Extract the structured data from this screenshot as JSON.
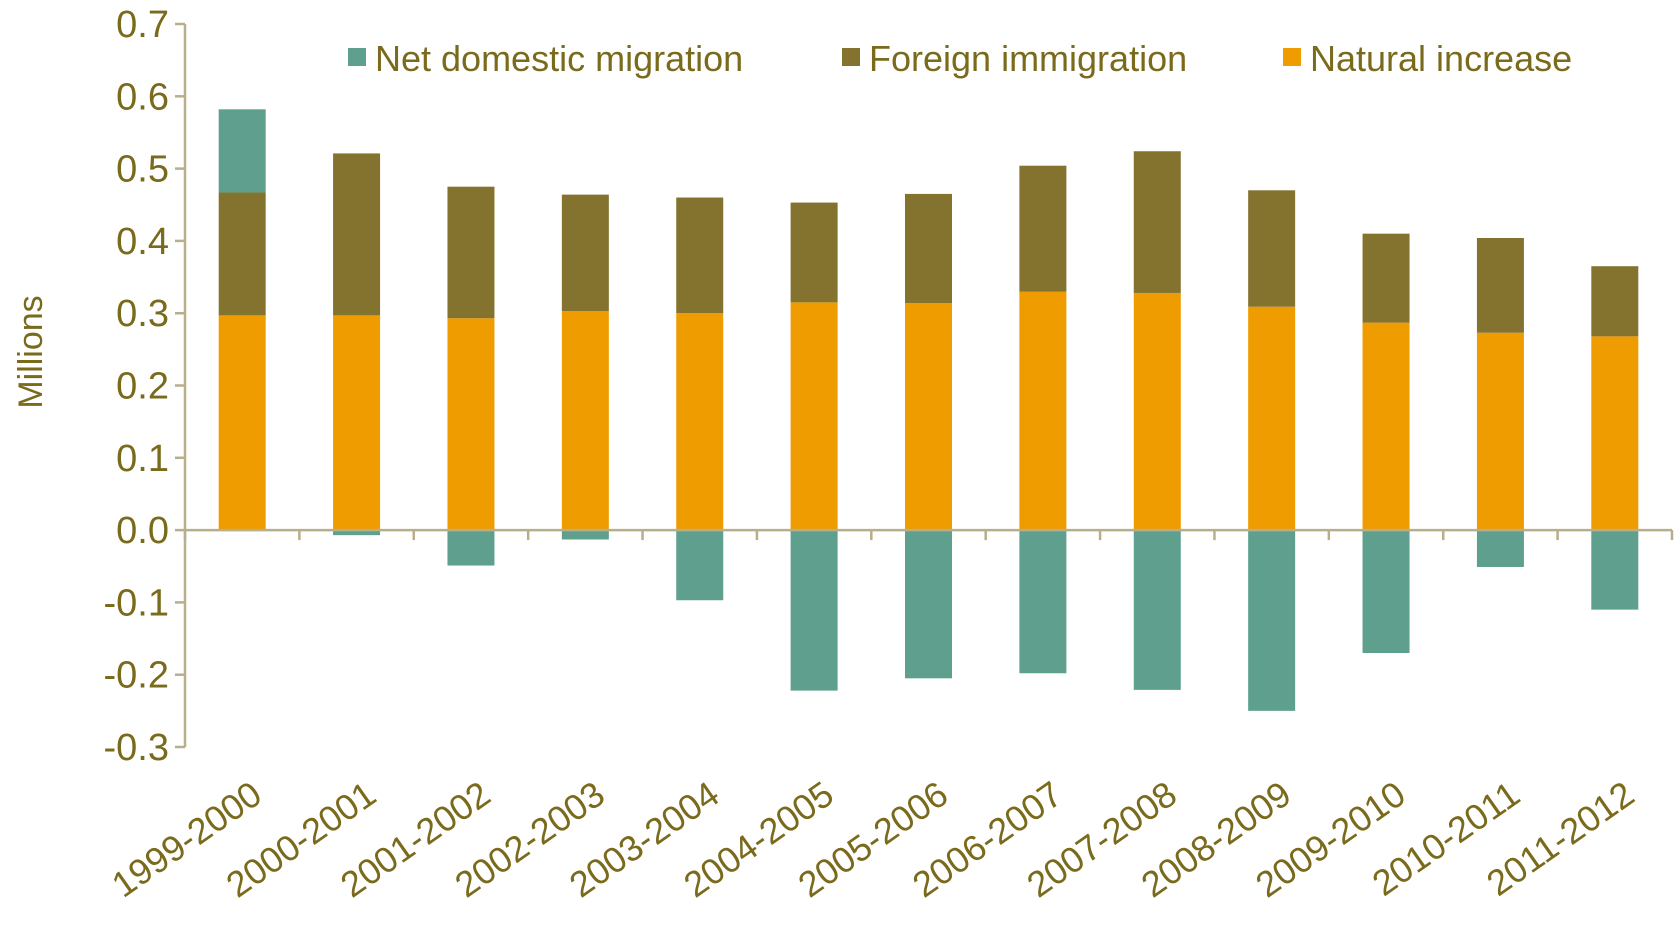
{
  "chart_data": {
    "type": "bar",
    "stacked": true,
    "ylabel": "Millions",
    "ylim": [
      -0.3,
      0.7
    ],
    "y_ticks": [
      "0.7",
      "0.6",
      "0.5",
      "0.4",
      "0.3",
      "0.2",
      "0.1",
      "0.0",
      "-0.1",
      "-0.2",
      "-0.3"
    ],
    "categories": [
      "1999-2000",
      "2000-2001",
      "2001-2002",
      "2002-2003",
      "2003-2004",
      "2004-2005",
      "2005-2006",
      "2006-2007",
      "2007-2008",
      "2008-2009",
      "2009-2010",
      "2010-2011",
      "2011-2012"
    ],
    "series": [
      {
        "name": "Natural increase",
        "color": "#ee9c00",
        "values": [
          0.297,
          0.297,
          0.293,
          0.303,
          0.3,
          0.315,
          0.314,
          0.33,
          0.328,
          0.309,
          0.287,
          0.273,
          0.268
        ]
      },
      {
        "name": "Foreign immigration",
        "color": "#83732f",
        "values": [
          0.17,
          0.224,
          0.182,
          0.161,
          0.16,
          0.138,
          0.151,
          0.174,
          0.196,
          0.161,
          0.123,
          0.131,
          0.097
        ]
      },
      {
        "name": "Net domestic migration",
        "color": "#5e9f8e",
        "values": [
          0.115,
          -0.007,
          -0.049,
          -0.013,
          -0.097,
          -0.222,
          -0.205,
          -0.198,
          -0.221,
          -0.25,
          -0.17,
          -0.051,
          -0.11
        ]
      }
    ],
    "legend": {
      "position": "top",
      "order": [
        "Net domestic migration",
        "Foreign immigration",
        "Natural increase"
      ]
    },
    "grid": false
  }
}
